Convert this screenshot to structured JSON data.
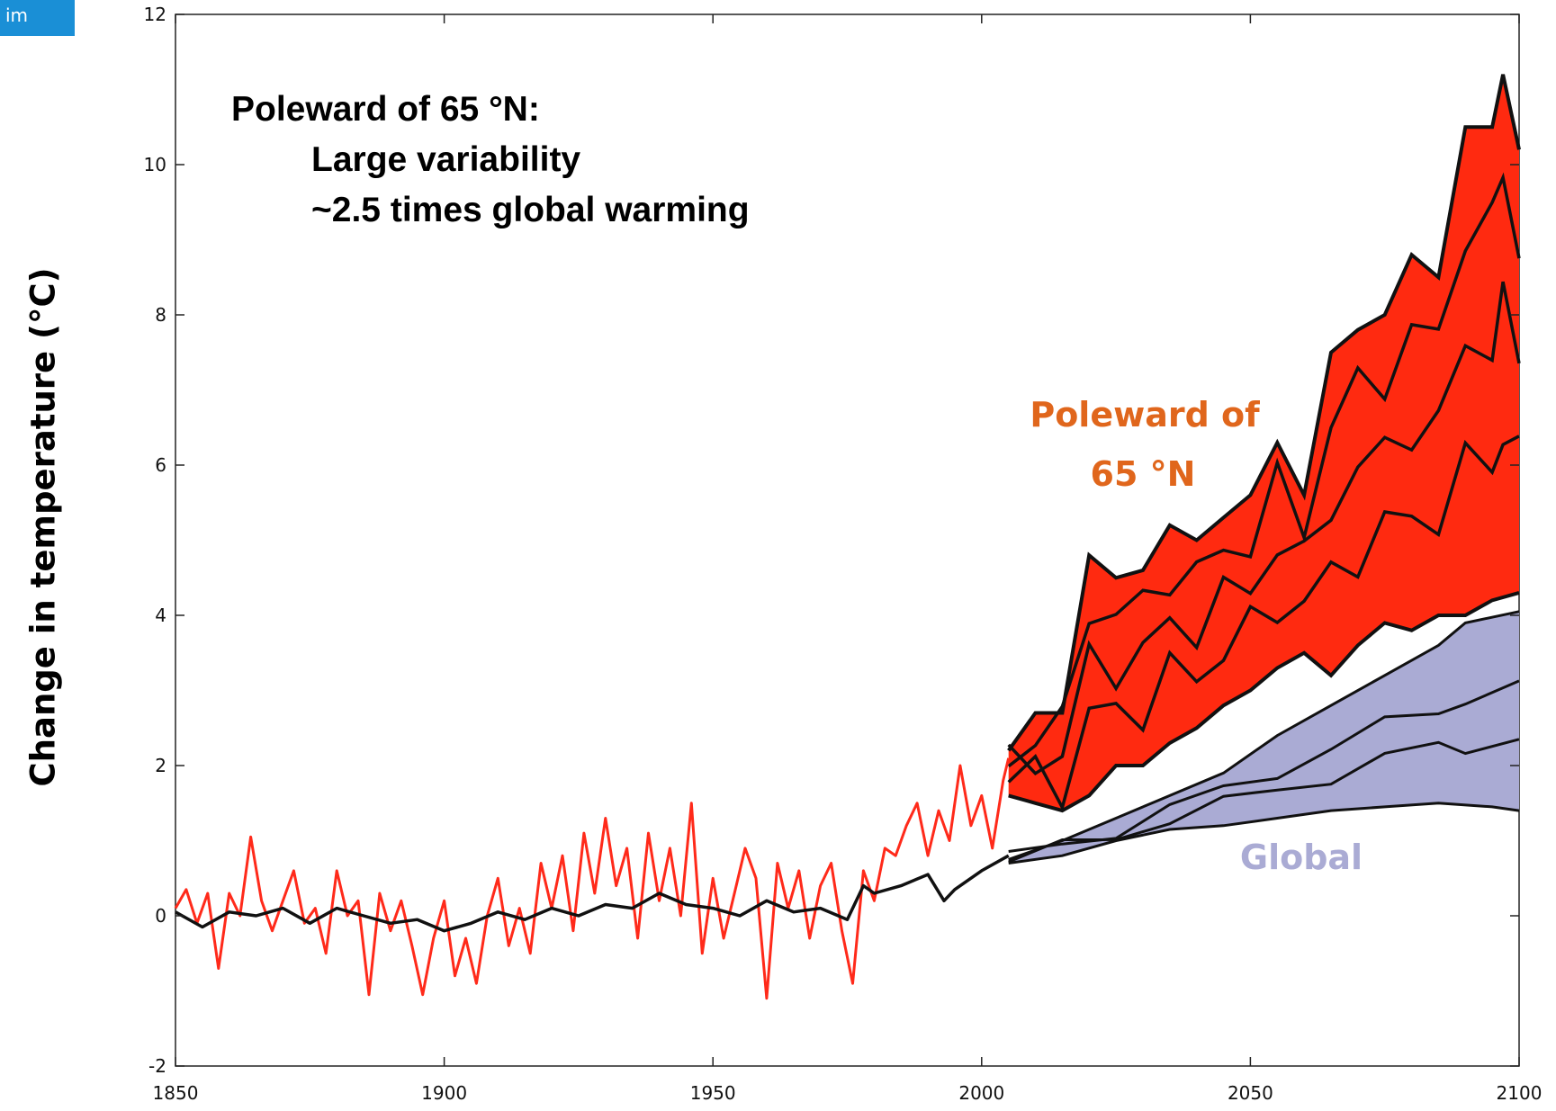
{
  "badge": {
    "text": "im"
  },
  "chart_data": {
    "type": "line",
    "title": "",
    "xlabel": "",
    "ylabel": "Change in temperature (°C)",
    "xlim": [
      1850,
      2100
    ],
    "ylim": [
      -2,
      12
    ],
    "xticks": [
      1850,
      1900,
      1950,
      2000,
      2050,
      2100
    ],
    "yticks": [
      -2,
      0,
      2,
      4,
      6,
      8,
      10,
      12
    ],
    "grid": false,
    "annotations": {
      "main_heading": "Poleward of 65 °N:",
      "main_line1": "Large variability",
      "main_line2": "~2.5 times global warming",
      "arctic_label_line1": "Poleward of",
      "arctic_label_line2": "65 °N",
      "global_label": "Global"
    },
    "colors": {
      "arctic_observed": "#ff2a1a",
      "arctic_fill": "#ff2a10",
      "global_fill": "#aaabd4",
      "projection_lines": "#111111",
      "arctic_text": "#e0661c",
      "global_text": "#aaabd4"
    },
    "series": [
      {
        "role": "arctic-observed",
        "x": [
          1850,
          1852,
          1854,
          1856,
          1858,
          1860,
          1862,
          1864,
          1866,
          1868,
          1870,
          1872,
          1874,
          1876,
          1878,
          1880,
          1882,
          1884,
          1886,
          1888,
          1890,
          1892,
          1894,
          1896,
          1898,
          1900,
          1902,
          1904,
          1906,
          1908,
          1910,
          1912,
          1914,
          1916,
          1918,
          1920,
          1922,
          1924,
          1926,
          1928,
          1930,
          1932,
          1934,
          1936,
          1938,
          1940,
          1942,
          1944,
          1946,
          1948,
          1950,
          1952,
          1954,
          1956,
          1958,
          1960,
          1962,
          1964,
          1966,
          1968,
          1970,
          1972,
          1974,
          1976,
          1978,
          1980,
          1982,
          1984,
          1986,
          1988,
          1990,
          1992,
          1994,
          1996,
          1998,
          2000,
          2002,
          2004,
          2005
        ],
        "y": [
          0.1,
          0.35,
          -0.1,
          0.3,
          -0.7,
          0.3,
          0.0,
          1.05,
          0.2,
          -0.2,
          0.2,
          0.6,
          -0.1,
          0.1,
          -0.5,
          0.6,
          0.0,
          0.2,
          -1.05,
          0.3,
          -0.2,
          0.2,
          -0.4,
          -1.05,
          -0.3,
          0.2,
          -0.8,
          -0.3,
          -0.9,
          0.0,
          0.5,
          -0.4,
          0.1,
          -0.5,
          0.7,
          0.1,
          0.8,
          -0.2,
          1.1,
          0.3,
          1.3,
          0.4,
          0.9,
          -0.3,
          1.1,
          0.2,
          0.9,
          0.0,
          1.5,
          -0.5,
          0.5,
          -0.3,
          0.3,
          0.9,
          0.5,
          -1.1,
          0.7,
          0.1,
          0.6,
          -0.3,
          0.4,
          0.7,
          -0.2,
          -0.9,
          0.6,
          0.2,
          0.9,
          0.8,
          1.2,
          1.5,
          0.8,
          1.4,
          1.0,
          2.0,
          1.2,
          1.6,
          0.9,
          1.8,
          2.1
        ]
      },
      {
        "role": "global-observed",
        "x": [
          1850,
          1855,
          1860,
          1865,
          1870,
          1875,
          1880,
          1885,
          1890,
          1895,
          1900,
          1905,
          1910,
          1915,
          1920,
          1925,
          1930,
          1935,
          1940,
          1945,
          1950,
          1955,
          1960,
          1965,
          1970,
          1975,
          1978,
          1980,
          1985,
          1990,
          1993,
          1995,
          2000,
          2005
        ],
        "y": [
          0.05,
          -0.15,
          0.05,
          0.0,
          0.1,
          -0.1,
          0.1,
          0.0,
          -0.1,
          -0.05,
          -0.2,
          -0.1,
          0.05,
          -0.05,
          0.1,
          0.0,
          0.15,
          0.1,
          0.3,
          0.15,
          0.1,
          0.0,
          0.2,
          0.05,
          0.1,
          -0.05,
          0.4,
          0.3,
          0.4,
          0.55,
          0.2,
          0.35,
          0.6,
          0.8
        ]
      },
      {
        "role": "arctic-projection-upper",
        "x": [
          2005,
          2010,
          2015,
          2020,
          2025,
          2030,
          2035,
          2040,
          2045,
          2050,
          2055,
          2060,
          2065,
          2070,
          2075,
          2080,
          2085,
          2090,
          2095,
          2097,
          2100
        ],
        "y": [
          2.2,
          2.7,
          2.7,
          4.8,
          4.5,
          4.6,
          5.2,
          5.0,
          5.3,
          5.6,
          6.3,
          5.6,
          7.5,
          7.8,
          8.0,
          8.8,
          8.5,
          10.5,
          10.5,
          11.2,
          10.2
        ]
      },
      {
        "role": "arctic-projection-lower",
        "x": [
          2005,
          2010,
          2015,
          2020,
          2025,
          2030,
          2035,
          2040,
          2045,
          2050,
          2055,
          2060,
          2065,
          2070,
          2075,
          2080,
          2085,
          2090,
          2095,
          2100
        ],
        "y": [
          1.6,
          1.5,
          1.4,
          1.6,
          2.0,
          2.0,
          2.3,
          2.5,
          2.8,
          3.0,
          3.3,
          3.5,
          3.2,
          3.6,
          3.9,
          3.8,
          4.0,
          4.0,
          4.2,
          4.3
        ]
      },
      {
        "role": "global-projection-upper",
        "x": [
          2005,
          2015,
          2025,
          2035,
          2045,
          2055,
          2065,
          2075,
          2085,
          2090,
          2100
        ],
        "y": [
          0.75,
          1.0,
          1.3,
          1.6,
          1.9,
          2.4,
          2.8,
          3.2,
          3.6,
          3.9,
          4.05
        ]
      },
      {
        "role": "global-projection-lower",
        "x": [
          2005,
          2015,
          2025,
          2035,
          2045,
          2055,
          2065,
          2075,
          2085,
          2095,
          2100
        ],
        "y": [
          0.7,
          0.8,
          1.0,
          1.15,
          1.2,
          1.3,
          1.4,
          1.45,
          1.5,
          1.45,
          1.4
        ]
      }
    ]
  }
}
